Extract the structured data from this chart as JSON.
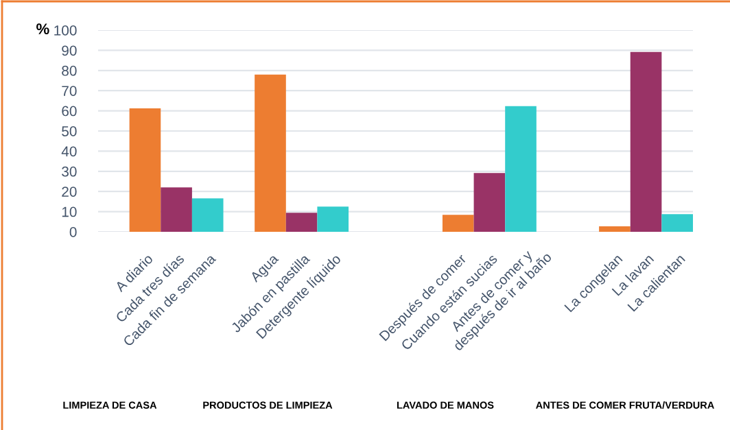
{
  "chart_data": {
    "type": "bar",
    "ylabel": "%",
    "categories": [
      null,
      "A diario",
      "Cada tres días",
      "Cada fin de semana",
      null,
      "Agua",
      "Jabón en pastilla",
      "Detergente líquido",
      null,
      null,
      null,
      "Después de comer",
      "Cuando están sucias",
      "Antes de comer y\ndespués de ir al baño",
      null,
      null,
      "La congelan",
      "La lavan",
      "La calientan"
    ],
    "series": [
      {
        "color": "#ed7d31",
        "values": [
          null,
          61.2,
          null,
          null,
          null,
          78.0,
          null,
          null,
          null,
          null,
          null,
          8.4,
          null,
          null,
          null,
          null,
          2.7,
          null,
          null
        ]
      },
      {
        "color": "#993366",
        "values": [
          null,
          null,
          22.0,
          null,
          null,
          null,
          9.4,
          null,
          null,
          null,
          null,
          null,
          29.2,
          null,
          null,
          null,
          null,
          89.2,
          null
        ]
      },
      {
        "color": "#33cccc",
        "values": [
          null,
          null,
          null,
          16.6,
          null,
          null,
          null,
          12.5,
          null,
          null,
          null,
          null,
          null,
          62.3,
          null,
          null,
          null,
          null,
          8.8
        ]
      }
    ],
    "ylim": [
      0,
      100
    ],
    "yticks": [
      0,
      10,
      20,
      30,
      40,
      50,
      60,
      70,
      80,
      90,
      100
    ],
    "grid": "y",
    "annotations": [
      "LIMPIEZA DE CASA",
      "PRODUCTOS DE LIMPIEZA",
      "LAVADO DE MANOS",
      "ANTES DE COMER FRUTA/VERDURA"
    ]
  }
}
